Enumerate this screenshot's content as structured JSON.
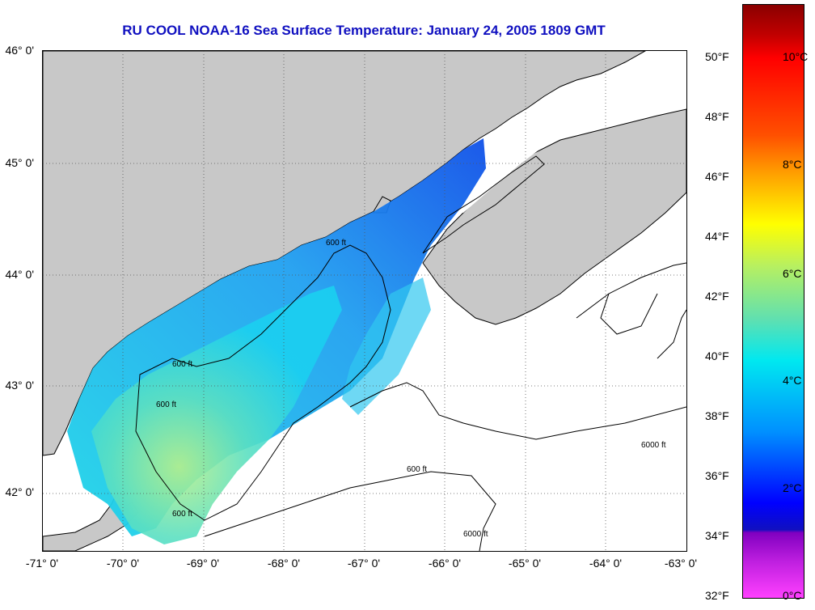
{
  "title": "RU COOL  NOAA-16  Sea Surface Temperature:  January 24, 2005 1809 GMT",
  "map": {
    "lat_labels": [
      "46° 0'",
      "45° 0'",
      "44° 0'",
      "43° 0'",
      "42° 0'"
    ],
    "lon_labels": [
      "-71° 0'",
      "-70° 0'",
      "-69° 0'",
      "-68° 0'",
      "-67° 0'",
      "-66° 0'",
      "-65° 0'",
      "-64° 0'",
      "-63° 0'"
    ],
    "extent": {
      "lon_min": -71,
      "lon_max": -63,
      "lat_min": 41.5,
      "lat_max": 46.0
    },
    "contour_labels": [
      "600 ft",
      "6000 ft"
    ],
    "colors": {
      "land": "#c8c8c8",
      "ocean_no_data": "#ffffff",
      "coastline": "#000000"
    }
  },
  "colorbar": {
    "fahrenheit_labels": [
      "50°F",
      "48°F",
      "46°F",
      "44°F",
      "42°F",
      "40°F",
      "38°F",
      "36°F",
      "34°F",
      "32°F"
    ],
    "celsius_labels": [
      "10°C",
      "8°C",
      "6°C",
      "4°C",
      "2°C",
      "0°C"
    ],
    "range_c": [
      0,
      11
    ]
  }
}
